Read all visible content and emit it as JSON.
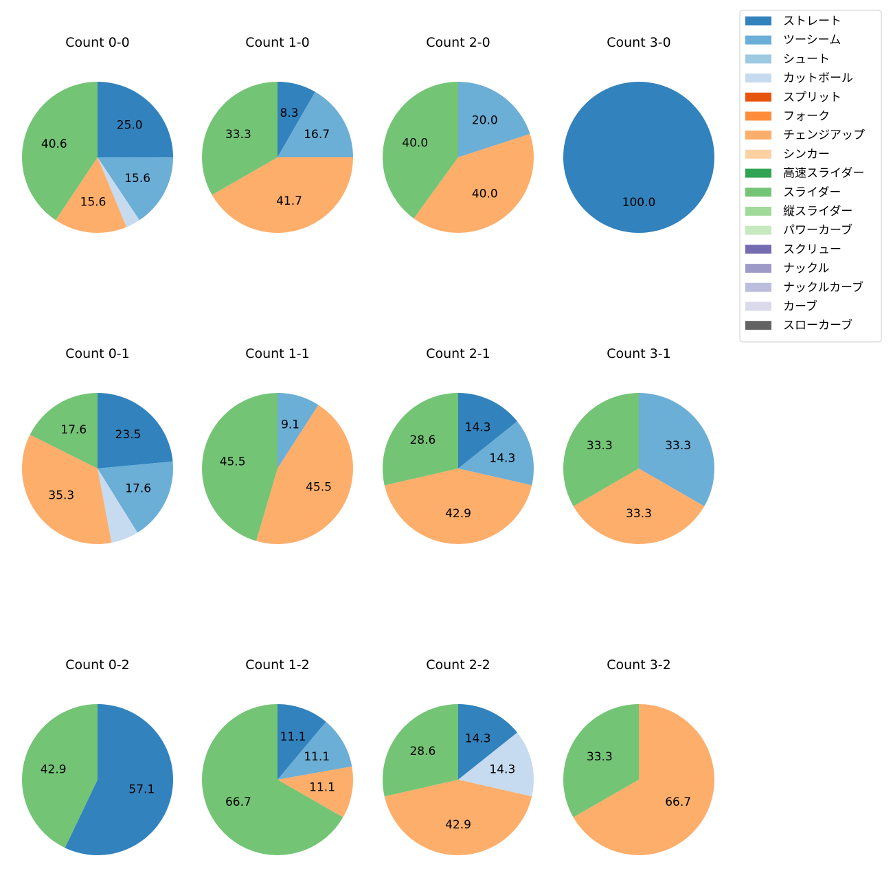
{
  "chart_data": {
    "type": "pie",
    "legend_position": "top-right",
    "legend": [
      {
        "label": "ストレート",
        "color": "#3182bd"
      },
      {
        "label": "ツーシーム",
        "color": "#6baed6"
      },
      {
        "label": "シュート",
        "color": "#9ecae1"
      },
      {
        "label": "カットボール",
        "color": "#c6dbef"
      },
      {
        "label": "スプリット",
        "color": "#e6550d"
      },
      {
        "label": "フォーク",
        "color": "#fd8d3c"
      },
      {
        "label": "チェンジアップ",
        "color": "#fdae6b"
      },
      {
        "label": "シンカー",
        "color": "#fdd0a2"
      },
      {
        "label": "高速スライダー",
        "color": "#31a354"
      },
      {
        "label": "スライダー",
        "color": "#74c476"
      },
      {
        "label": "縦スライダー",
        "color": "#a1d99b"
      },
      {
        "label": "パワーカーブ",
        "color": "#c7e9c0"
      },
      {
        "label": "スクリュー",
        "color": "#756bb1"
      },
      {
        "label": "ナックル",
        "color": "#9e9ac8"
      },
      {
        "label": "ナックルカーブ",
        "color": "#bcbddc"
      },
      {
        "label": "カーブ",
        "color": "#dadaeb"
      },
      {
        "label": "スローカーブ",
        "color": "#636363"
      }
    ],
    "pies": [
      {
        "title": "Count 0-0",
        "slices": [
          {
            "pitch": "ストレート",
            "value": 25.0,
            "label": "25.0"
          },
          {
            "pitch": "ツーシーム",
            "value": 15.6,
            "label": "15.6"
          },
          {
            "pitch": "カットボール",
            "value": 3.1,
            "label": ""
          },
          {
            "pitch": "チェンジアップ",
            "value": 15.6,
            "label": "15.6"
          },
          {
            "pitch": "スライダー",
            "value": 40.6,
            "label": "40.6"
          }
        ]
      },
      {
        "title": "Count 1-0",
        "slices": [
          {
            "pitch": "ストレート",
            "value": 8.3,
            "label": "8.3"
          },
          {
            "pitch": "ツーシーム",
            "value": 16.7,
            "label": "16.7"
          },
          {
            "pitch": "チェンジアップ",
            "value": 41.7,
            "label": "41.7"
          },
          {
            "pitch": "スライダー",
            "value": 33.3,
            "label": "33.3"
          }
        ]
      },
      {
        "title": "Count 2-0",
        "slices": [
          {
            "pitch": "ツーシーム",
            "value": 20.0,
            "label": "20.0"
          },
          {
            "pitch": "チェンジアップ",
            "value": 40.0,
            "label": "40.0"
          },
          {
            "pitch": "スライダー",
            "value": 40.0,
            "label": "40.0"
          }
        ]
      },
      {
        "title": "Count 3-0",
        "slices": [
          {
            "pitch": "ストレート",
            "value": 100.0,
            "label": "100.0"
          }
        ]
      },
      {
        "title": "Count 0-1",
        "slices": [
          {
            "pitch": "ストレート",
            "value": 23.5,
            "label": "23.5"
          },
          {
            "pitch": "ツーシーム",
            "value": 17.6,
            "label": "17.6"
          },
          {
            "pitch": "カットボール",
            "value": 5.9,
            "label": ""
          },
          {
            "pitch": "チェンジアップ",
            "value": 35.3,
            "label": "35.3"
          },
          {
            "pitch": "スライダー",
            "value": 17.6,
            "label": "17.6"
          }
        ]
      },
      {
        "title": "Count 1-1",
        "slices": [
          {
            "pitch": "ツーシーム",
            "value": 9.1,
            "label": "9.1"
          },
          {
            "pitch": "チェンジアップ",
            "value": 45.5,
            "label": "45.5"
          },
          {
            "pitch": "スライダー",
            "value": 45.5,
            "label": "45.5"
          }
        ]
      },
      {
        "title": "Count 2-1",
        "slices": [
          {
            "pitch": "ストレート",
            "value": 14.3,
            "label": "14.3"
          },
          {
            "pitch": "ツーシーム",
            "value": 14.3,
            "label": "14.3"
          },
          {
            "pitch": "チェンジアップ",
            "value": 42.9,
            "label": "42.9"
          },
          {
            "pitch": "スライダー",
            "value": 28.6,
            "label": "28.6"
          }
        ]
      },
      {
        "title": "Count 3-1",
        "slices": [
          {
            "pitch": "ツーシーム",
            "value": 33.3,
            "label": "33.3"
          },
          {
            "pitch": "チェンジアップ",
            "value": 33.3,
            "label": "33.3"
          },
          {
            "pitch": "スライダー",
            "value": 33.3,
            "label": "33.3"
          }
        ]
      },
      {
        "title": "Count 0-2",
        "slices": [
          {
            "pitch": "ストレート",
            "value": 57.1,
            "label": "57.1"
          },
          {
            "pitch": "スライダー",
            "value": 42.9,
            "label": "42.9"
          }
        ]
      },
      {
        "title": "Count 1-2",
        "slices": [
          {
            "pitch": "ストレート",
            "value": 11.1,
            "label": "11.1"
          },
          {
            "pitch": "ツーシーム",
            "value": 11.1,
            "label": "11.1"
          },
          {
            "pitch": "チェンジアップ",
            "value": 11.1,
            "label": "11.1"
          },
          {
            "pitch": "スライダー",
            "value": 66.7,
            "label": "66.7"
          }
        ]
      },
      {
        "title": "Count 2-2",
        "slices": [
          {
            "pitch": "ストレート",
            "value": 14.3,
            "label": "14.3"
          },
          {
            "pitch": "カットボール",
            "value": 14.3,
            "label": "14.3"
          },
          {
            "pitch": "チェンジアップ",
            "value": 42.9,
            "label": "42.9"
          },
          {
            "pitch": "スライダー",
            "value": 28.6,
            "label": "28.6"
          }
        ]
      },
      {
        "title": "Count 3-2",
        "slices": [
          {
            "pitch": "チェンジアップ",
            "value": 66.7,
            "label": "66.7"
          },
          {
            "pitch": "スライダー",
            "value": 33.3,
            "label": "33.3"
          }
        ]
      }
    ]
  }
}
